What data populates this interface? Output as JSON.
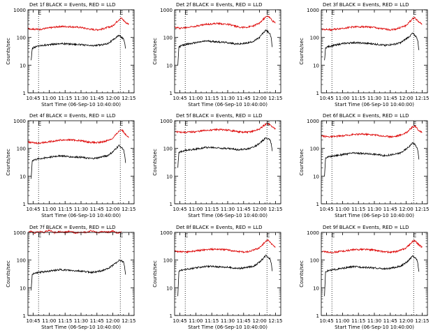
{
  "figure": {
    "line_colors": {
      "events": "#000000",
      "lld": "#dd0000",
      "axes": "#000000",
      "background": "#ffffff"
    },
    "time_ticks": [
      "10:45",
      "11:00",
      "11:15",
      "11:30",
      "11:45",
      "12:00",
      "12:15"
    ],
    "y_tick_labels": [
      "1",
      "10",
      "100",
      "1000"
    ]
  },
  "chart_data": [
    {
      "type": "line",
      "title": "Det 1f BLACK = Events, RED = LLD",
      "xlabel": "Start Time (06-Sep-10 10:40:00)",
      "ylabel": "Counts/sec",
      "ylog": true,
      "ylim": [
        1,
        1000
      ],
      "xlim_minutes": [
        0,
        100
      ],
      "vlines_minutes": [
        10,
        87
      ],
      "vline_labels": [
        "E",
        "E"
      ],
      "series": [
        {
          "name": "Events",
          "color": "#000000",
          "x": [
            3,
            4,
            5,
            10,
            20,
            30,
            40,
            50,
            55,
            60,
            65,
            70,
            75,
            80,
            83,
            86,
            88,
            90,
            91,
            92
          ],
          "y": [
            15,
            40,
            42,
            50,
            55,
            60,
            58,
            55,
            52,
            50,
            52,
            55,
            60,
            80,
            100,
            120,
            100,
            90,
            70,
            40
          ]
        },
        {
          "name": "LLD",
          "color": "#dd0000",
          "x": [
            0,
            5,
            10,
            20,
            30,
            40,
            50,
            55,
            60,
            65,
            70,
            75,
            80,
            83,
            86,
            88,
            90,
            92,
            95
          ],
          "y": [
            210,
            200,
            195,
            220,
            250,
            245,
            230,
            210,
            195,
            190,
            200,
            230,
            260,
            350,
            450,
            500,
            420,
            350,
            300
          ]
        }
      ]
    },
    {
      "type": "line",
      "title": "Det 2f BLACK = Events, RED = LLD",
      "xlabel": "Start Time (06-Sep-10 10:40:00)",
      "ylabel": "Counts/sec",
      "ylog": true,
      "ylim": [
        1,
        1000
      ],
      "xlim_minutes": [
        0,
        100
      ],
      "vlines_minutes": [
        10,
        87
      ],
      "vline_labels": [
        "E",
        "E"
      ],
      "series": [
        {
          "name": "Events",
          "color": "#000000",
          "x": [
            3,
            4,
            5,
            10,
            20,
            30,
            40,
            50,
            55,
            60,
            65,
            70,
            75,
            80,
            83,
            86,
            88,
            90,
            91,
            92
          ],
          "y": [
            10,
            45,
            48,
            55,
            65,
            75,
            70,
            65,
            60,
            58,
            60,
            65,
            75,
            100,
            140,
            180,
            160,
            130,
            90,
            45
          ]
        },
        {
          "name": "LLD",
          "color": "#dd0000",
          "x": [
            0,
            5,
            10,
            20,
            30,
            40,
            50,
            55,
            60,
            65,
            70,
            75,
            80,
            83,
            86,
            88,
            90,
            92,
            95
          ],
          "y": [
            230,
            220,
            225,
            260,
            300,
            320,
            300,
            270,
            240,
            230,
            240,
            270,
            330,
            430,
            550,
            600,
            500,
            400,
            330
          ]
        }
      ]
    },
    {
      "type": "line",
      "title": "Det 3f BLACK = Events, RED = LLD",
      "xlabel": "Start Time (06-Sep-10 10:40:00)",
      "ylabel": "Counts/sec",
      "ylog": true,
      "ylim": [
        1,
        1000
      ],
      "xlim_minutes": [
        0,
        100
      ],
      "vlines_minutes": [
        10,
        87
      ],
      "vline_labels": [
        "E",
        "E"
      ],
      "series": [
        {
          "name": "Events",
          "color": "#000000",
          "x": [
            3,
            4,
            5,
            10,
            20,
            30,
            40,
            50,
            55,
            60,
            65,
            70,
            75,
            80,
            83,
            86,
            88,
            90,
            91,
            92
          ],
          "y": [
            15,
            40,
            45,
            50,
            60,
            65,
            62,
            58,
            55,
            52,
            55,
            58,
            65,
            90,
            110,
            140,
            120,
            100,
            70,
            35
          ]
        },
        {
          "name": "LLD",
          "color": "#dd0000",
          "x": [
            0,
            5,
            10,
            20,
            30,
            40,
            50,
            55,
            60,
            65,
            70,
            75,
            80,
            83,
            86,
            88,
            90,
            92,
            95
          ],
          "y": [
            200,
            195,
            190,
            215,
            240,
            245,
            230,
            210,
            200,
            190,
            200,
            230,
            270,
            360,
            470,
            520,
            430,
            360,
            300
          ]
        }
      ]
    },
    {
      "type": "line",
      "title": "Det 4f BLACK = Events, RED = LLD",
      "xlabel": "Start Time (06-Sep-10 10:40:00)",
      "ylabel": "Counts/sec",
      "ylog": true,
      "ylim": [
        1,
        1000
      ],
      "xlim_minutes": [
        0,
        100
      ],
      "vlines_minutes": [
        10,
        87
      ],
      "vline_labels": [
        "E",
        "E"
      ],
      "series": [
        {
          "name": "Events",
          "color": "#000000",
          "x": [
            3,
            4,
            5,
            10,
            20,
            30,
            40,
            50,
            55,
            60,
            65,
            70,
            75,
            80,
            83,
            86,
            88,
            90,
            91,
            92
          ],
          "y": [
            8,
            35,
            38,
            42,
            48,
            55,
            50,
            48,
            45,
            43,
            45,
            50,
            55,
            75,
            100,
            130,
            110,
            90,
            60,
            30
          ]
        },
        {
          "name": "LLD",
          "color": "#dd0000",
          "x": [
            0,
            5,
            10,
            20,
            30,
            40,
            50,
            55,
            60,
            65,
            70,
            75,
            80,
            83,
            86,
            88,
            90,
            92,
            95
          ],
          "y": [
            170,
            160,
            155,
            175,
            200,
            205,
            190,
            175,
            165,
            160,
            170,
            195,
            230,
            320,
            430,
            480,
            400,
            320,
            260
          ]
        }
      ]
    },
    {
      "type": "line",
      "title": "Det 5f BLACK = Events, RED = LLD",
      "xlabel": "Start Time (06-Sep-10 10:40:00)",
      "ylabel": "Counts/sec",
      "ylog": true,
      "ylim": [
        1,
        1000
      ],
      "xlim_minutes": [
        0,
        100
      ],
      "vlines_minutes": [
        10,
        87
      ],
      "vline_labels": [
        "E",
        "E"
      ],
      "series": [
        {
          "name": "Events",
          "color": "#000000",
          "x": [
            3,
            4,
            5,
            10,
            20,
            30,
            40,
            50,
            55,
            60,
            65,
            70,
            75,
            80,
            83,
            86,
            88,
            90,
            91,
            92
          ],
          "y": [
            20,
            70,
            75,
            85,
            95,
            110,
            105,
            100,
            95,
            90,
            92,
            100,
            115,
            150,
            190,
            240,
            230,
            200,
            150,
            80
          ]
        },
        {
          "name": "LLD",
          "color": "#dd0000",
          "x": [
            0,
            5,
            10,
            20,
            30,
            40,
            50,
            55,
            60,
            65,
            70,
            75,
            80,
            83,
            86,
            88,
            90,
            92,
            95
          ],
          "y": [
            400,
            390,
            380,
            400,
            450,
            480,
            460,
            430,
            400,
            380,
            390,
            430,
            500,
            620,
            750,
            800,
            700,
            600,
            500
          ]
        }
      ]
    },
    {
      "type": "line",
      "title": "Det 6f BLACK = Events, RED = LLD",
      "xlabel": "Start Time (06-Sep-10 10:40:00)",
      "ylabel": "Counts/sec",
      "ylog": true,
      "ylim": [
        1,
        1000
      ],
      "xlim_minutes": [
        0,
        100
      ],
      "vlines_minutes": [
        10,
        87
      ],
      "vline_labels": [
        "E",
        "E"
      ],
      "series": [
        {
          "name": "Events",
          "color": "#000000",
          "x": [
            3,
            4,
            5,
            10,
            20,
            30,
            40,
            50,
            55,
            60,
            65,
            70,
            75,
            80,
            83,
            86,
            88,
            90,
            91,
            92
          ],
          "y": [
            10,
            45,
            48,
            52,
            60,
            68,
            65,
            62,
            58,
            55,
            58,
            62,
            70,
            95,
            120,
            160,
            140,
            110,
            80,
            40
          ]
        },
        {
          "name": "LLD",
          "color": "#dd0000",
          "x": [
            0,
            5,
            10,
            20,
            30,
            40,
            50,
            55,
            60,
            65,
            70,
            75,
            80,
            83,
            86,
            88,
            90,
            92,
            95
          ],
          "y": [
            280,
            270,
            265,
            285,
            320,
            330,
            310,
            290,
            275,
            265,
            275,
            310,
            370,
            470,
            590,
            640,
            540,
            440,
            370
          ]
        }
      ]
    },
    {
      "type": "line",
      "title": "Det 7f BLACK = Events, RED = LLD",
      "xlabel": "Start Time (06-Sep-10 10:40:00)",
      "ylabel": "Counts/sec",
      "ylog": true,
      "ylim": [
        1,
        1000
      ],
      "xlim_minutes": [
        0,
        100
      ],
      "vlines_minutes": [
        10,
        87
      ],
      "vline_labels": [
        "E",
        "E"
      ],
      "series": [
        {
          "name": "Events",
          "color": "#000000",
          "x": [
            3,
            4,
            5,
            10,
            20,
            30,
            40,
            50,
            55,
            60,
            65,
            70,
            75,
            80,
            83,
            86,
            88,
            90,
            91,
            92
          ],
          "y": [
            8,
            30,
            32,
            36,
            40,
            45,
            42,
            40,
            38,
            36,
            38,
            42,
            48,
            65,
            80,
            100,
            95,
            85,
            60,
            30
          ]
        },
        {
          "name": "LLD",
          "color": "#dd0000",
          "x": [
            0,
            3,
            6,
            10,
            15,
            20,
            25,
            30,
            35,
            40,
            45,
            50,
            55,
            60,
            65,
            70,
            75,
            80,
            85,
            88
          ],
          "y": [
            1000,
            1100,
            950,
            1050,
            1000,
            1200,
            980,
            1050,
            1000,
            1100,
            950,
            1050,
            1000,
            1150,
            980,
            1050,
            1000,
            1100,
            950,
            1050
          ]
        }
      ]
    },
    {
      "type": "line",
      "title": "Det 8f BLACK = Events, RED = LLD",
      "xlabel": "Start Time (06-Sep-10 10:40:00)",
      "ylabel": "Counts/sec",
      "ylog": true,
      "ylim": [
        1,
        1000
      ],
      "xlim_minutes": [
        0,
        100
      ],
      "vlines_minutes": [
        10,
        87
      ],
      "vline_labels": [
        "E",
        "E"
      ],
      "series": [
        {
          "name": "Events",
          "color": "#000000",
          "x": [
            3,
            4,
            5,
            10,
            20,
            30,
            40,
            50,
            55,
            60,
            65,
            70,
            75,
            80,
            83,
            86,
            88,
            90,
            91,
            92
          ],
          "y": [
            5,
            40,
            42,
            46,
            52,
            60,
            58,
            55,
            52,
            50,
            52,
            56,
            62,
            85,
            110,
            150,
            130,
            110,
            80,
            40
          ]
        },
        {
          "name": "LLD",
          "color": "#dd0000",
          "x": [
            0,
            5,
            10,
            20,
            30,
            40,
            50,
            55,
            60,
            65,
            70,
            75,
            80,
            83,
            86,
            88,
            90,
            92,
            95
          ],
          "y": [
            210,
            200,
            195,
            215,
            240,
            250,
            235,
            215,
            205,
            195,
            205,
            235,
            280,
            370,
            480,
            520,
            440,
            360,
            300
          ]
        }
      ]
    },
    {
      "type": "line",
      "title": "Det 9f BLACK = Events, RED = LLD",
      "xlabel": "Start Time (06-Sep-10 10:40:00)",
      "ylabel": "Counts/sec",
      "ylog": true,
      "ylim": [
        1,
        1000
      ],
      "xlim_minutes": [
        0,
        100
      ],
      "vlines_minutes": [
        10,
        87
      ],
      "vline_labels": [
        "E",
        "E"
      ],
      "series": [
        {
          "name": "Events",
          "color": "#000000",
          "x": [
            3,
            4,
            5,
            10,
            20,
            30,
            40,
            50,
            55,
            60,
            65,
            70,
            75,
            80,
            83,
            86,
            88,
            90,
            91,
            92
          ],
          "y": [
            5,
            38,
            40,
            44,
            50,
            58,
            55,
            52,
            50,
            48,
            50,
            55,
            60,
            82,
            105,
            140,
            125,
            105,
            75,
            38
          ]
        },
        {
          "name": "LLD",
          "color": "#dd0000",
          "x": [
            0,
            5,
            10,
            20,
            30,
            40,
            50,
            55,
            60,
            65,
            70,
            75,
            80,
            83,
            86,
            88,
            90,
            92,
            95
          ],
          "y": [
            205,
            195,
            190,
            210,
            235,
            245,
            230,
            210,
            200,
            190,
            200,
            230,
            275,
            360,
            470,
            510,
            430,
            350,
            290
          ]
        }
      ]
    }
  ]
}
